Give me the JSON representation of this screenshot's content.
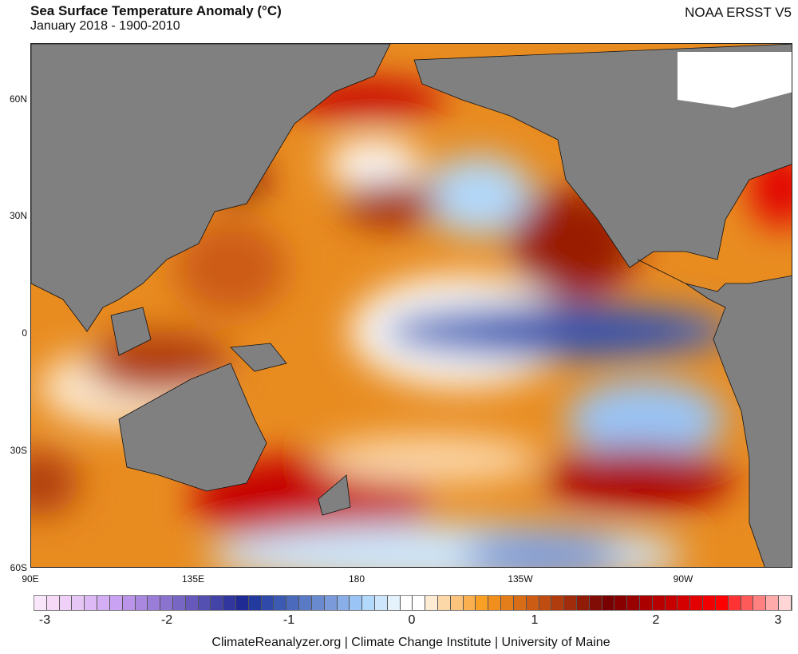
{
  "header": {
    "title": "Sea Surface Temperature Anomaly (°C)",
    "subtitle": "January 2018 - 1900-2010",
    "dataset": "NOAA ERSST V5"
  },
  "map": {
    "lat_labels": [
      "60N",
      "30N",
      "0",
      "30S",
      "60S"
    ],
    "lon_labels": [
      "90E",
      "135E",
      "180",
      "135W",
      "90W"
    ],
    "land_color": "#808080"
  },
  "colorbar": {
    "ticks": [
      "-3",
      "-2",
      "-1",
      "0",
      "1",
      "2",
      "3"
    ],
    "range": [
      -3,
      3
    ],
    "step": 0.1,
    "colors": [
      "#fae6fa",
      "#f5d9f7",
      "#efd0f7",
      "#e6c6f5",
      "#ddbaf5",
      "#d4aef5",
      "#caa2f3",
      "#ba94e9",
      "#aa88e0",
      "#9a7dd8",
      "#8a72cf",
      "#7866c5",
      "#6659bb",
      "#5450b2",
      "#4343a8",
      "#31369e",
      "#1f2a94",
      "#233a9e",
      "#2f4aa8",
      "#3d5ab2",
      "#4b6abc",
      "#5a7ac6",
      "#6a8ad0",
      "#7a9ada",
      "#8aaee8",
      "#9ac4f5",
      "#b2d8fa",
      "#cde6fb",
      "#e4f2fc",
      "#ffffff",
      "#ffffff",
      "#fdebd3",
      "#fcd7a8",
      "#fcc37c",
      "#fbb050",
      "#f9a024",
      "#f08f1e",
      "#e47e1a",
      "#d86d17",
      "#cc5c14",
      "#bf4c11",
      "#b03c0e",
      "#a02c0b",
      "#901c08",
      "#800c05",
      "#790000",
      "#880000",
      "#990000",
      "#aa0000",
      "#b80000",
      "#c60000",
      "#d40000",
      "#e20000",
      "#f00000",
      "#ff0000",
      "#ff3333",
      "#ff5a5a",
      "#ff8080",
      "#ffaaaa",
      "#ffd5d5"
    ]
  },
  "footer": {
    "credit": "ClimateReanalyzer.org | Climate Change Institute | University of Maine"
  }
}
